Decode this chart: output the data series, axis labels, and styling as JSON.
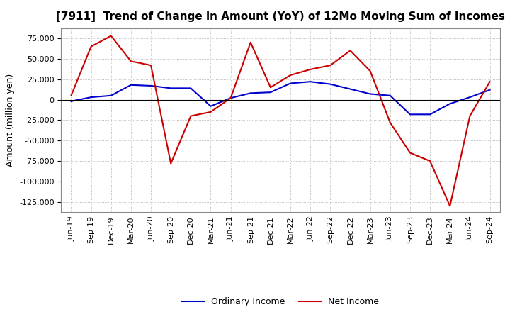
{
  "title": "[7911]  Trend of Change in Amount (YoY) of 12Mo Moving Sum of Incomes",
  "ylabel": "Amount (million yen)",
  "ylim": [
    -137500,
    87500
  ],
  "yticks": [
    -125000,
    -100000,
    -75000,
    -50000,
    -25000,
    0,
    25000,
    50000,
    75000
  ],
  "x_labels": [
    "Jun-19",
    "Sep-19",
    "Dec-19",
    "Mar-20",
    "Jun-20",
    "Sep-20",
    "Dec-20",
    "Mar-21",
    "Jun-21",
    "Sep-21",
    "Dec-21",
    "Mar-22",
    "Jun-22",
    "Sep-22",
    "Dec-22",
    "Mar-23",
    "Jun-23",
    "Sep-23",
    "Dec-23",
    "Mar-24",
    "Jun-24",
    "Sep-24"
  ],
  "ordinary_income": [
    -2000,
    3000,
    5000,
    18000,
    17000,
    14000,
    14000,
    -8000,
    2000,
    8000,
    9000,
    20000,
    22000,
    19000,
    13000,
    7000,
    5000,
    -18000,
    -18000,
    -5000,
    3000,
    12000
  ],
  "net_income": [
    5000,
    65000,
    78000,
    47000,
    42000,
    -78000,
    -20000,
    -15000,
    2000,
    70000,
    15000,
    30000,
    37000,
    42000,
    60000,
    35000,
    -28000,
    -65000,
    -75000,
    -130000,
    -20000,
    22000
  ],
  "ordinary_income_color": "#0000cc",
  "net_income_color": "#cc0000",
  "background_color": "#ffffff",
  "grid_color": "#aaaaaa",
  "title_fontsize": 11,
  "legend_fontsize": 9,
  "axis_fontsize": 8
}
